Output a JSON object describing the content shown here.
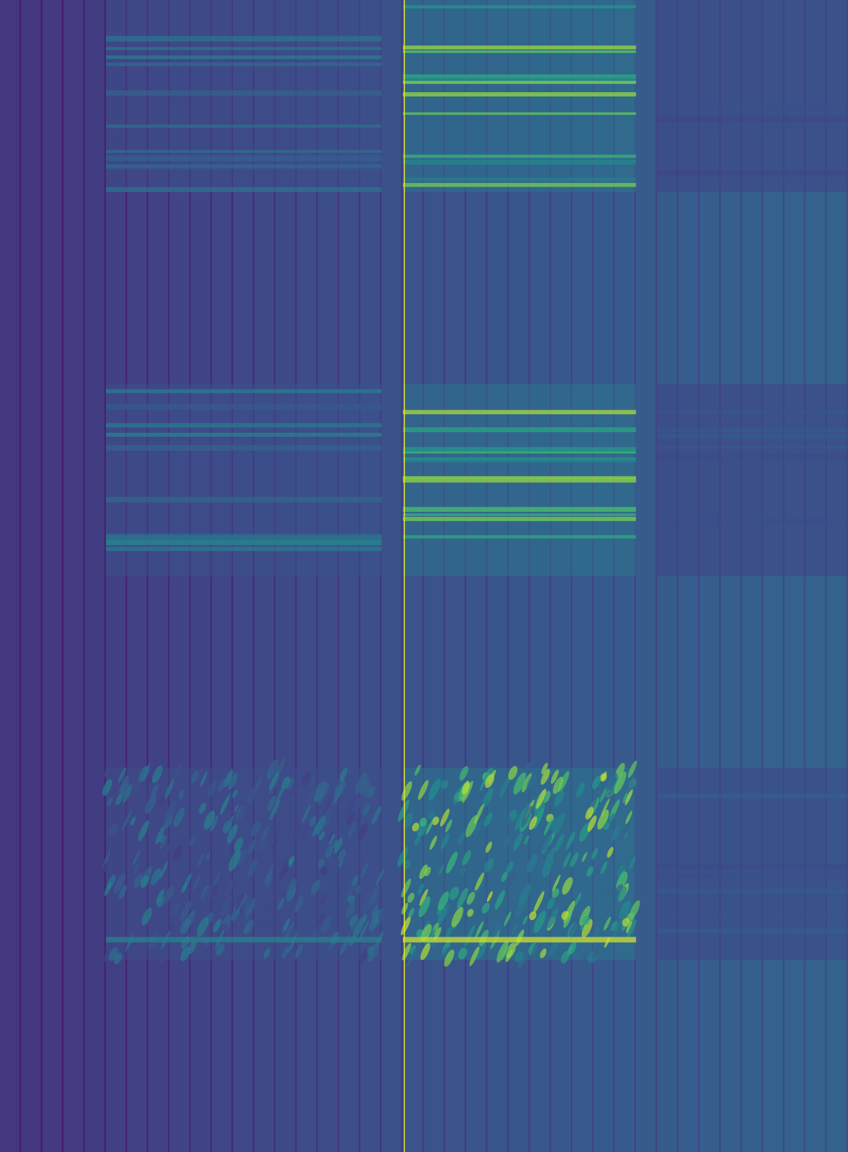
{
  "chart_data": {
    "type": "heatmap",
    "title": "",
    "xlabel": "",
    "ylabel": "",
    "colormap": "viridis",
    "axes_visible": false,
    "legend": "none",
    "grid": false,
    "value_range": [
      0,
      1
    ],
    "base_values_by_column": [
      0.2,
      0.32,
      0.4
    ],
    "stripe_period_columns": 1,
    "column_count": 40,
    "row_band_count": 6,
    "highlight_column_value": 0.96,
    "bands": [
      {
        "band": 1,
        "columns": [
          6,
          18
        ],
        "peak": 0.55,
        "pattern": "horizontal-lines"
      },
      {
        "band": 1,
        "columns": [
          20,
          30
        ],
        "peak": 0.95,
        "pattern": "horizontal-lines"
      },
      {
        "band": 1,
        "columns": [
          32,
          40
        ],
        "peak": 0.42,
        "pattern": "faint-horizontal"
      },
      {
        "band": 3,
        "columns": [
          6,
          18
        ],
        "peak": 0.6,
        "pattern": "horizontal-lines"
      },
      {
        "band": 3,
        "columns": [
          20,
          30
        ],
        "peak": 0.92,
        "pattern": "horizontal-lines"
      },
      {
        "band": 3,
        "columns": [
          32,
          40
        ],
        "peak": 0.42,
        "pattern": "faint-horizontal"
      },
      {
        "band": 5,
        "columns": [
          6,
          18
        ],
        "peak": 0.55,
        "pattern": "diagonal-speckle"
      },
      {
        "band": 5,
        "columns": [
          20,
          30
        ],
        "peak": 0.95,
        "pattern": "diagonal-speckle"
      },
      {
        "band": 5,
        "columns": [
          32,
          40
        ],
        "peak": 0.45,
        "pattern": "faint-horizontal"
      }
    ]
  }
}
